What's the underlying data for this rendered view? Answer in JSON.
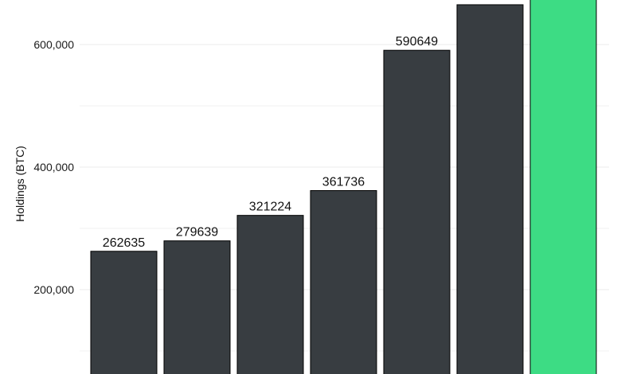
{
  "chart_data": {
    "type": "bar",
    "ylabel": "Holdings (BTC)",
    "xlabel": "",
    "title": "",
    "ylim": [
      0,
      680000
    ],
    "visible_y_range": [
      95000,
      710000
    ],
    "yticks": [
      200000,
      400000,
      600000
    ],
    "ytick_labels": [
      "200,000",
      "400,000",
      "600,000"
    ],
    "minor_gridlines": [
      100000,
      300000,
      500000
    ],
    "grid": true,
    "legend": "none",
    "values": [
      262635,
      279639,
      321224,
      361736,
      590649,
      665000,
      710000
    ],
    "data_labels": [
      "262635",
      "279639",
      "321224",
      "361736",
      "590649",
      "",
      ""
    ],
    "colors": [
      "#383d41",
      "#383d41",
      "#383d41",
      "#383d41",
      "#383d41",
      "#383d41",
      "#3ddc84"
    ],
    "bar_outline_color": "#000000",
    "gridline_color": "#ebebeb"
  }
}
